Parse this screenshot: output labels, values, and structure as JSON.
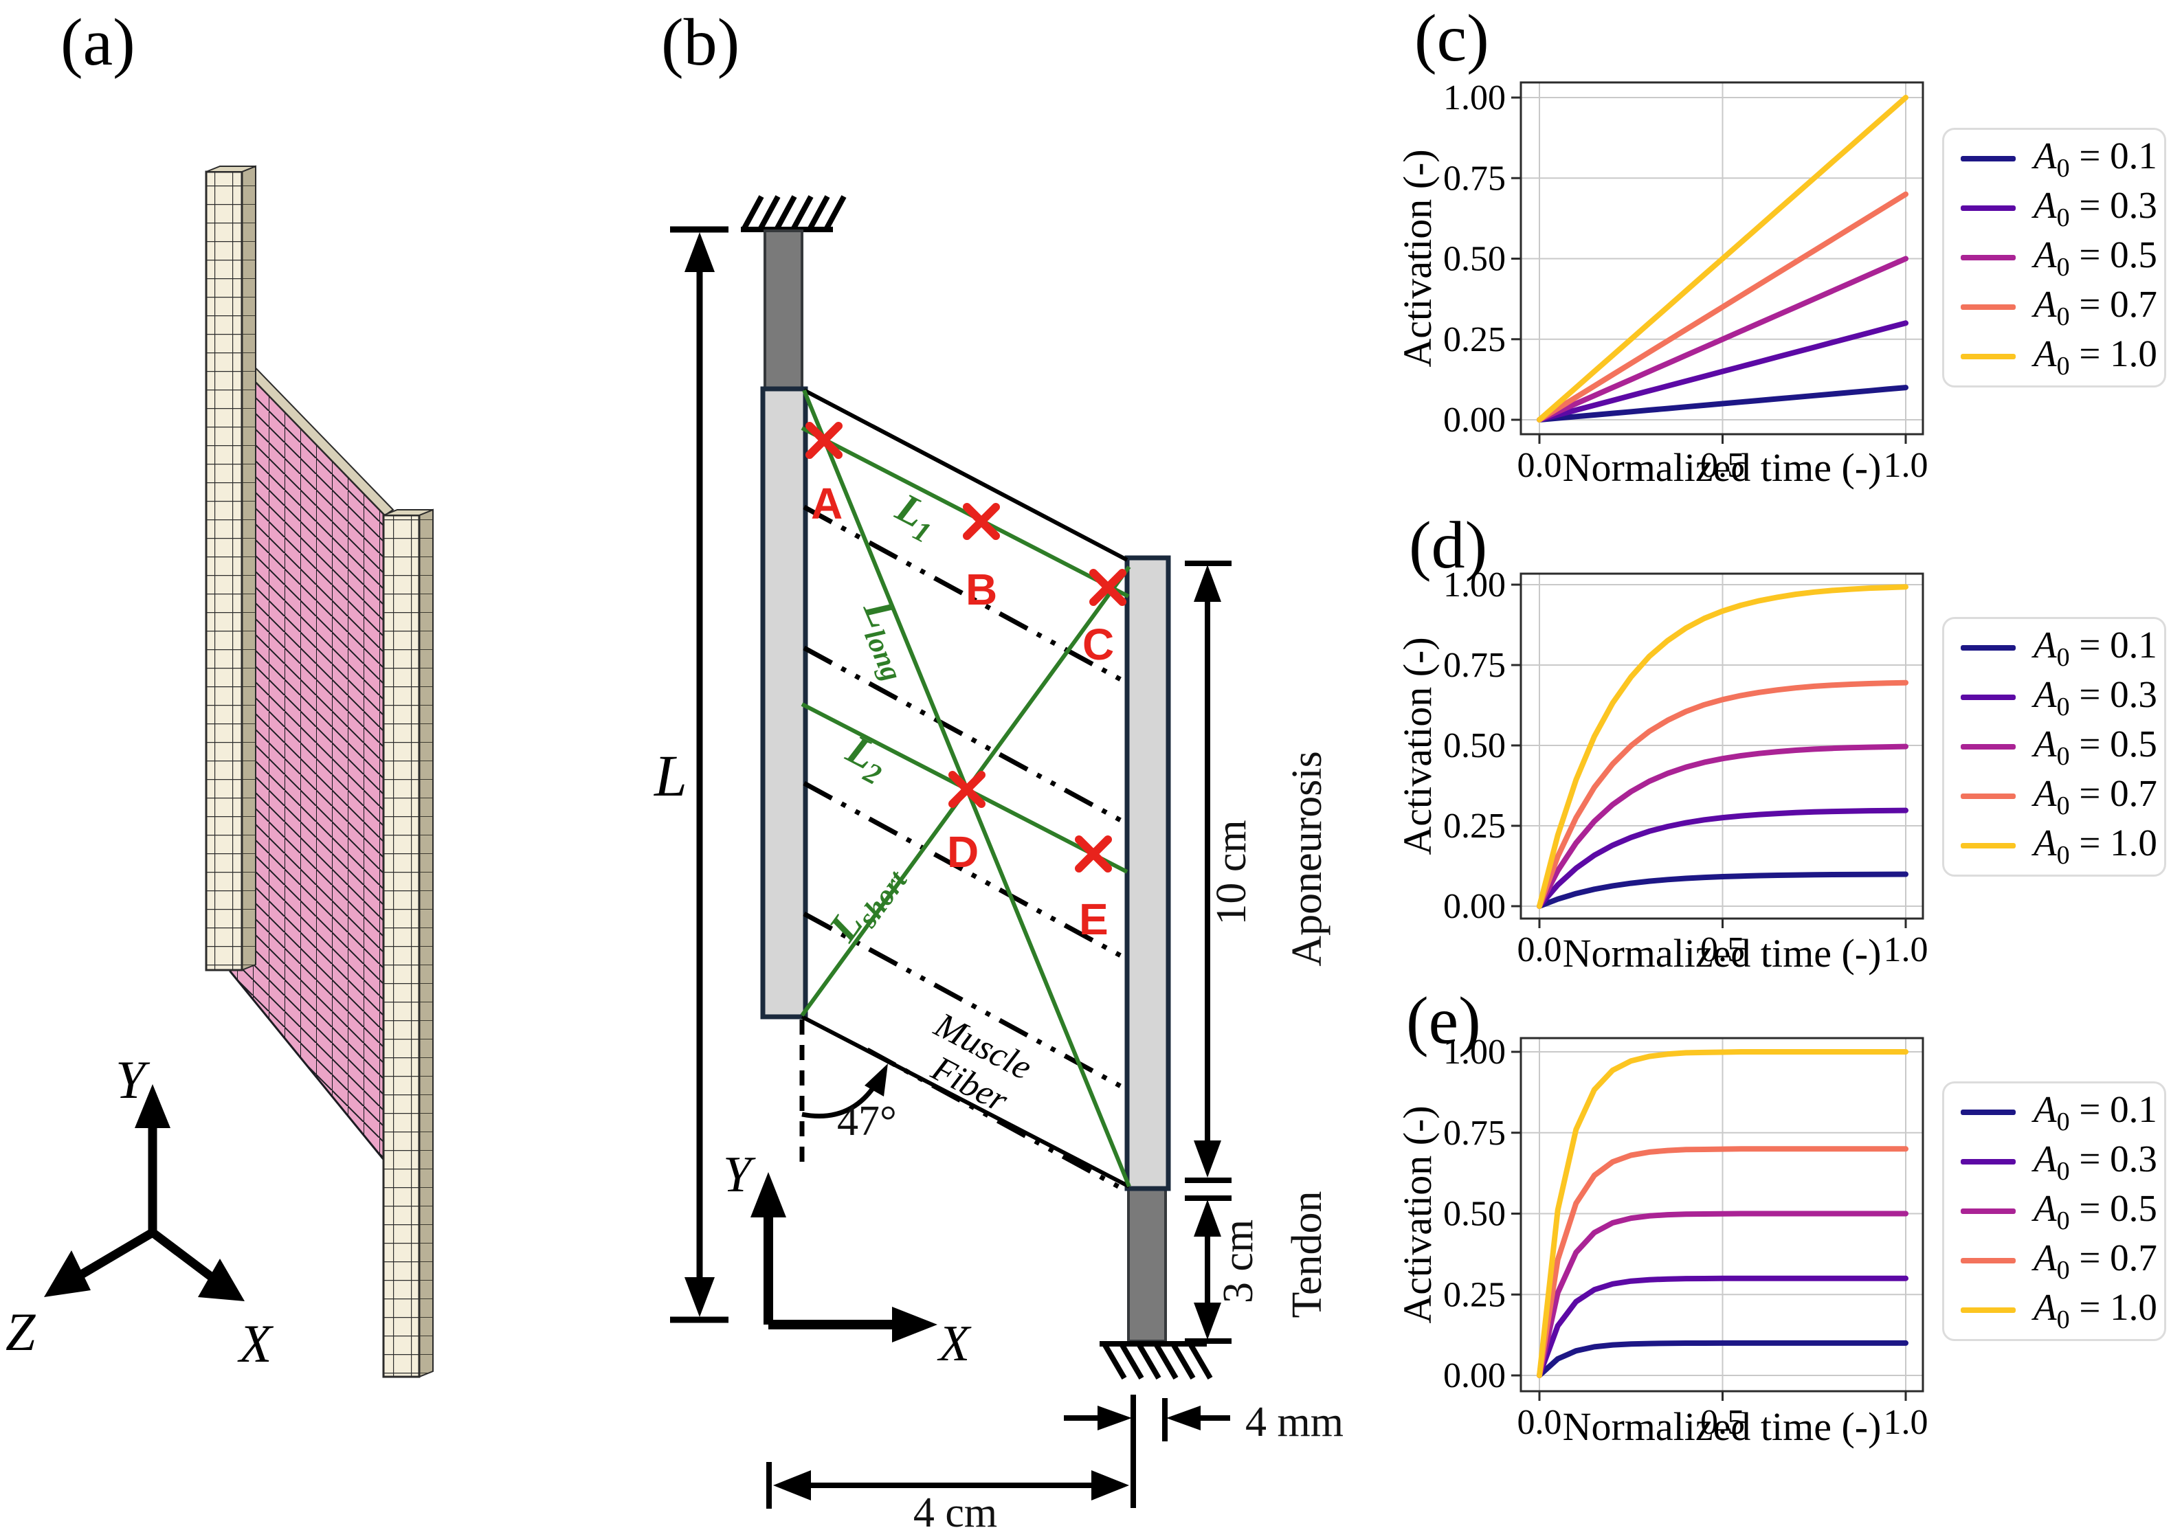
{
  "figure": {
    "panel_labels": {
      "a": "(a)",
      "b": "(b)",
      "c": "(c)",
      "d": "(d)",
      "e": "(e)"
    },
    "colors": {
      "muscle_mesh_pink": "#eba4c7",
      "tissue_mesh_cream": "#f4eedb",
      "aponeurosis_fill": "#d6d6d6",
      "tendon_fill": "#7a7a7a",
      "outline_navy": "#1b2a3d",
      "fiber_path_green": "#2e7d27",
      "marker_red": "#e8231c"
    },
    "panel_a": {
      "axis_x": "X",
      "axis_y": "Y",
      "axis_z": "Z"
    },
    "panel_b": {
      "length_label": "L",
      "angle_label": "47°",
      "width_label": "4 cm",
      "thickness_label": "4 mm",
      "aponeurosis_length_label": "10 cm",
      "tendon_length_label": "3 cm",
      "aponeurosis_label": "Aponeurosis",
      "tendon_label": "Tendon",
      "muscle_fiber_label_line1": "Muscle",
      "muscle_fiber_label_line2": "Fiber",
      "axis_x": "X",
      "axis_y": "Y",
      "fiber_paths": {
        "L1": {
          "main": "L",
          "sub": "1"
        },
        "L2": {
          "main": "L",
          "sub": "2"
        },
        "Llong": {
          "main": "L",
          "sub": "long"
        },
        "Lshort": {
          "main": "L",
          "sub": "short"
        }
      },
      "points": {
        "A": "A",
        "B": "B",
        "C": "C",
        "D": "D",
        "E": "E"
      }
    }
  },
  "chart_data": [
    {
      "id": "c",
      "type": "line",
      "title": "",
      "xlabel": "Normalized time (-)",
      "ylabel": "Activation (-)",
      "xlim": [
        -0.05,
        1.05
      ],
      "ylim": [
        -0.04,
        1.04
      ],
      "xticks": [
        0.0,
        0.5,
        1.0
      ],
      "xtick_labels": [
        "0.0",
        "0.5",
        "1.0"
      ],
      "yticks": [
        0.0,
        0.25,
        0.5,
        0.75,
        1.0
      ],
      "ytick_labels": [
        "0.00",
        "0.25",
        "0.50",
        "0.75",
        "1.00"
      ],
      "grid": true,
      "legend_position": "right",
      "curve_model": "linear ramp A(t) = A0 · t",
      "x": [
        0,
        0.05,
        0.1,
        0.15,
        0.2,
        0.25,
        0.3,
        0.35,
        0.4,
        0.45,
        0.5,
        0.55,
        0.6,
        0.65,
        0.7,
        0.75,
        0.8,
        0.85,
        0.9,
        0.95,
        1.0
      ],
      "shape": [
        0,
        0.05,
        0.1,
        0.15,
        0.2,
        0.25,
        0.3,
        0.35,
        0.4,
        0.45,
        0.5,
        0.55,
        0.6,
        0.65,
        0.7,
        0.75,
        0.8,
        0.85,
        0.9,
        0.95,
        1.0
      ],
      "series": [
        {
          "var": "A",
          "sub": "0",
          "rest": " = 0.1",
          "A0": 0.1,
          "color": "#1d1786"
        },
        {
          "var": "A",
          "sub": "0",
          "rest": " = 0.3",
          "A0": 0.3,
          "color": "#5c09a5"
        },
        {
          "var": "A",
          "sub": "0",
          "rest": " = 0.5",
          "A0": 0.5,
          "color": "#aa2395"
        },
        {
          "var": "A",
          "sub": "0",
          "rest": " = 0.7",
          "A0": 0.7,
          "color": "#f3735c"
        },
        {
          "var": "A",
          "sub": "0",
          "rest": " = 1.0",
          "A0": 1.0,
          "color": "#fcc521"
        }
      ]
    },
    {
      "id": "d",
      "type": "line",
      "title": "",
      "xlabel": "Normalized time (-)",
      "ylabel": "Activation (-)",
      "xlim": [
        -0.05,
        1.05
      ],
      "ylim": [
        -0.04,
        1.04
      ],
      "xticks": [
        0.0,
        0.5,
        1.0
      ],
      "xtick_labels": [
        "0.0",
        "0.5",
        "1.0"
      ],
      "yticks": [
        0.0,
        0.25,
        0.5,
        0.75,
        1.0
      ],
      "ytick_labels": [
        "0.00",
        "0.25",
        "0.50",
        "0.75",
        "1.00"
      ],
      "grid": true,
      "legend_position": "right",
      "curve_model": "saturating exponential A(t) = A0 · (1 - e^(-t/0.2))",
      "x": [
        0,
        0.05,
        0.1,
        0.15,
        0.2,
        0.25,
        0.3,
        0.35,
        0.4,
        0.45,
        0.5,
        0.55,
        0.6,
        0.65,
        0.7,
        0.75,
        0.8,
        0.85,
        0.9,
        0.95,
        1.0
      ],
      "shape": [
        0,
        0.221,
        0.393,
        0.528,
        0.632,
        0.713,
        0.777,
        0.826,
        0.865,
        0.895,
        0.918,
        0.936,
        0.95,
        0.961,
        0.97,
        0.977,
        0.982,
        0.986,
        0.989,
        0.991,
        0.993
      ],
      "series": [
        {
          "var": "A",
          "sub": "0",
          "rest": " = 0.1",
          "A0": 0.1,
          "color": "#1d1786"
        },
        {
          "var": "A",
          "sub": "0",
          "rest": " = 0.3",
          "A0": 0.3,
          "color": "#5c09a5"
        },
        {
          "var": "A",
          "sub": "0",
          "rest": " = 0.5",
          "A0": 0.5,
          "color": "#aa2395"
        },
        {
          "var": "A",
          "sub": "0",
          "rest": " = 0.7",
          "A0": 0.7,
          "color": "#f3735c"
        },
        {
          "var": "A",
          "sub": "0",
          "rest": " = 1.0",
          "A0": 1.0,
          "color": "#fcc521"
        }
      ]
    },
    {
      "id": "e",
      "type": "line",
      "title": "",
      "xlabel": "Normalized time (-)",
      "ylabel": "Activation (-)",
      "xlim": [
        -0.05,
        1.05
      ],
      "ylim": [
        -0.04,
        1.04
      ],
      "xticks": [
        0.0,
        0.5,
        1.0
      ],
      "xtick_labels": [
        "0.0",
        "0.5",
        "1.0"
      ],
      "yticks": [
        0.0,
        0.25,
        0.5,
        0.75,
        1.0
      ],
      "ytick_labels": [
        "0.00",
        "0.25",
        "0.50",
        "0.75",
        "1.00"
      ],
      "grid": true,
      "legend_position": "right",
      "curve_model": "saturating exponential A(t) = A0 · (1 - e^(-t/0.07))",
      "x": [
        0,
        0.05,
        0.1,
        0.15,
        0.2,
        0.25,
        0.3,
        0.35,
        0.4,
        0.45,
        0.5,
        0.55,
        0.6,
        0.65,
        0.7,
        0.75,
        0.8,
        0.85,
        0.9,
        0.95,
        1.0
      ],
      "shape": [
        0,
        0.511,
        0.76,
        0.883,
        0.943,
        0.972,
        0.986,
        0.993,
        0.997,
        0.998,
        0.999,
        1.0,
        1.0,
        1.0,
        1.0,
        1.0,
        1.0,
        1.0,
        1.0,
        1.0,
        1.0
      ],
      "series": [
        {
          "var": "A",
          "sub": "0",
          "rest": " = 0.1",
          "A0": 0.1,
          "color": "#1d1786"
        },
        {
          "var": "A",
          "sub": "0",
          "rest": " = 0.3",
          "A0": 0.3,
          "color": "#5c09a5"
        },
        {
          "var": "A",
          "sub": "0",
          "rest": " = 0.5",
          "A0": 0.5,
          "color": "#aa2395"
        },
        {
          "var": "A",
          "sub": "0",
          "rest": " = 0.7",
          "A0": 0.7,
          "color": "#f3735c"
        },
        {
          "var": "A",
          "sub": "0",
          "rest": " = 1.0",
          "A0": 1.0,
          "color": "#fcc521"
        }
      ]
    }
  ]
}
